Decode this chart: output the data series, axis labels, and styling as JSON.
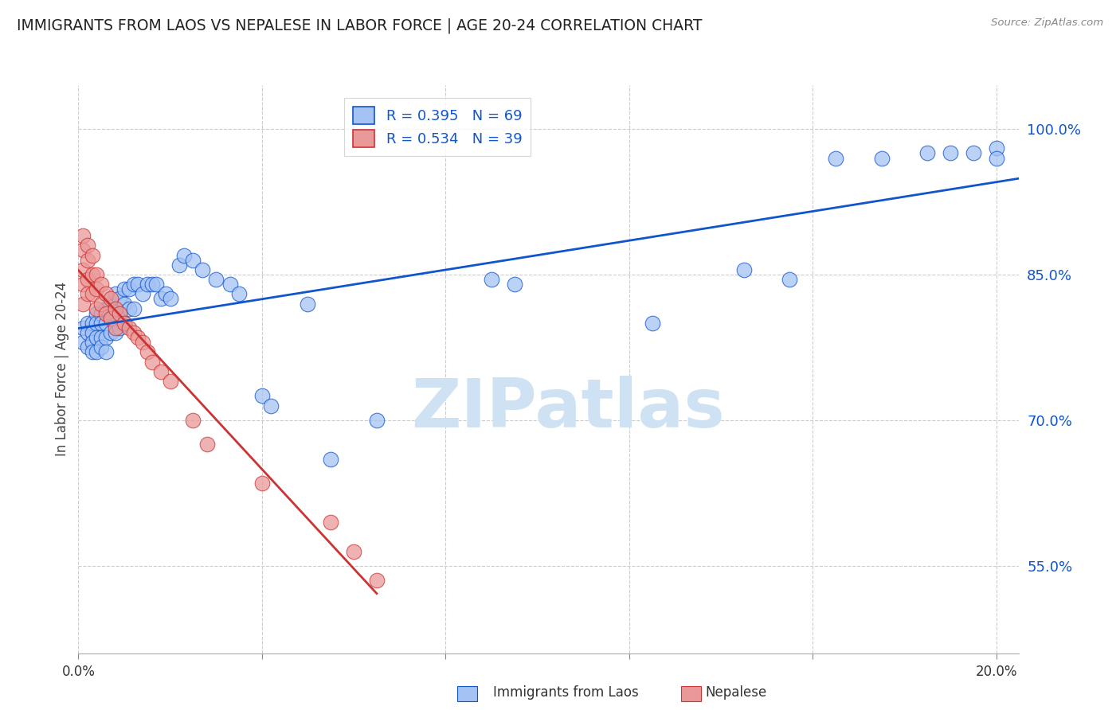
{
  "title": "IMMIGRANTS FROM LAOS VS NEPALESE IN LABOR FORCE | AGE 20-24 CORRELATION CHART",
  "source": "Source: ZipAtlas.com",
  "ylabel": "In Labor Force | Age 20-24",
  "yticks": [
    0.55,
    0.7,
    0.85,
    1.0
  ],
  "ytick_labels": [
    "55.0%",
    "70.0%",
    "85.0%",
    "100.0%"
  ],
  "xticks": [
    0.0,
    0.04,
    0.08,
    0.12,
    0.16,
    0.2
  ],
  "xmin": 0.0,
  "xmax": 0.205,
  "ymin": 0.46,
  "ymax": 1.045,
  "blue_color": "#a4c2f4",
  "pink_color": "#ea9999",
  "blue_line_color": "#1155cc",
  "pink_line_color": "#cc3333",
  "legend_blue_label": "R = 0.395   N = 69",
  "legend_pink_label": "R = 0.534   N = 39",
  "blue_dots_x": [
    0.001,
    0.001,
    0.002,
    0.002,
    0.002,
    0.003,
    0.003,
    0.003,
    0.003,
    0.004,
    0.004,
    0.004,
    0.004,
    0.005,
    0.005,
    0.005,
    0.005,
    0.006,
    0.006,
    0.006,
    0.006,
    0.007,
    0.007,
    0.007,
    0.008,
    0.008,
    0.008,
    0.009,
    0.009,
    0.009,
    0.01,
    0.01,
    0.01,
    0.011,
    0.011,
    0.012,
    0.012,
    0.013,
    0.014,
    0.015,
    0.016,
    0.017,
    0.018,
    0.019,
    0.02,
    0.022,
    0.023,
    0.025,
    0.027,
    0.03,
    0.033,
    0.035,
    0.04,
    0.042,
    0.05,
    0.055,
    0.065,
    0.09,
    0.095,
    0.125,
    0.145,
    0.155,
    0.165,
    0.175,
    0.185,
    0.19,
    0.195,
    0.2,
    0.2
  ],
  "blue_dots_y": [
    0.795,
    0.78,
    0.8,
    0.79,
    0.775,
    0.8,
    0.79,
    0.78,
    0.77,
    0.81,
    0.8,
    0.785,
    0.77,
    0.81,
    0.8,
    0.785,
    0.775,
    0.815,
    0.8,
    0.785,
    0.77,
    0.82,
    0.805,
    0.79,
    0.83,
    0.815,
    0.79,
    0.825,
    0.81,
    0.795,
    0.835,
    0.82,
    0.8,
    0.835,
    0.815,
    0.84,
    0.815,
    0.84,
    0.83,
    0.84,
    0.84,
    0.84,
    0.825,
    0.83,
    0.825,
    0.86,
    0.87,
    0.865,
    0.855,
    0.845,
    0.84,
    0.83,
    0.725,
    0.715,
    0.82,
    0.66,
    0.7,
    0.845,
    0.84,
    0.8,
    0.855,
    0.845,
    0.97,
    0.97,
    0.975,
    0.975,
    0.975,
    0.98,
    0.97
  ],
  "pink_dots_x": [
    0.001,
    0.001,
    0.001,
    0.001,
    0.001,
    0.002,
    0.002,
    0.002,
    0.002,
    0.003,
    0.003,
    0.003,
    0.004,
    0.004,
    0.004,
    0.005,
    0.005,
    0.006,
    0.006,
    0.007,
    0.007,
    0.008,
    0.008,
    0.009,
    0.01,
    0.011,
    0.012,
    0.013,
    0.014,
    0.015,
    0.016,
    0.018,
    0.02,
    0.025,
    0.028,
    0.04,
    0.055,
    0.06,
    0.065
  ],
  "pink_dots_y": [
    0.89,
    0.875,
    0.855,
    0.84,
    0.82,
    0.88,
    0.865,
    0.845,
    0.83,
    0.87,
    0.85,
    0.83,
    0.85,
    0.835,
    0.815,
    0.84,
    0.82,
    0.83,
    0.81,
    0.825,
    0.805,
    0.815,
    0.795,
    0.81,
    0.8,
    0.795,
    0.79,
    0.785,
    0.78,
    0.77,
    0.76,
    0.75,
    0.74,
    0.7,
    0.675,
    0.635,
    0.595,
    0.565,
    0.535
  ],
  "watermark": "ZIPatlas",
  "watermark_color": "#cfe2f3",
  "background_color": "#ffffff",
  "grid_color": "#cccccc"
}
